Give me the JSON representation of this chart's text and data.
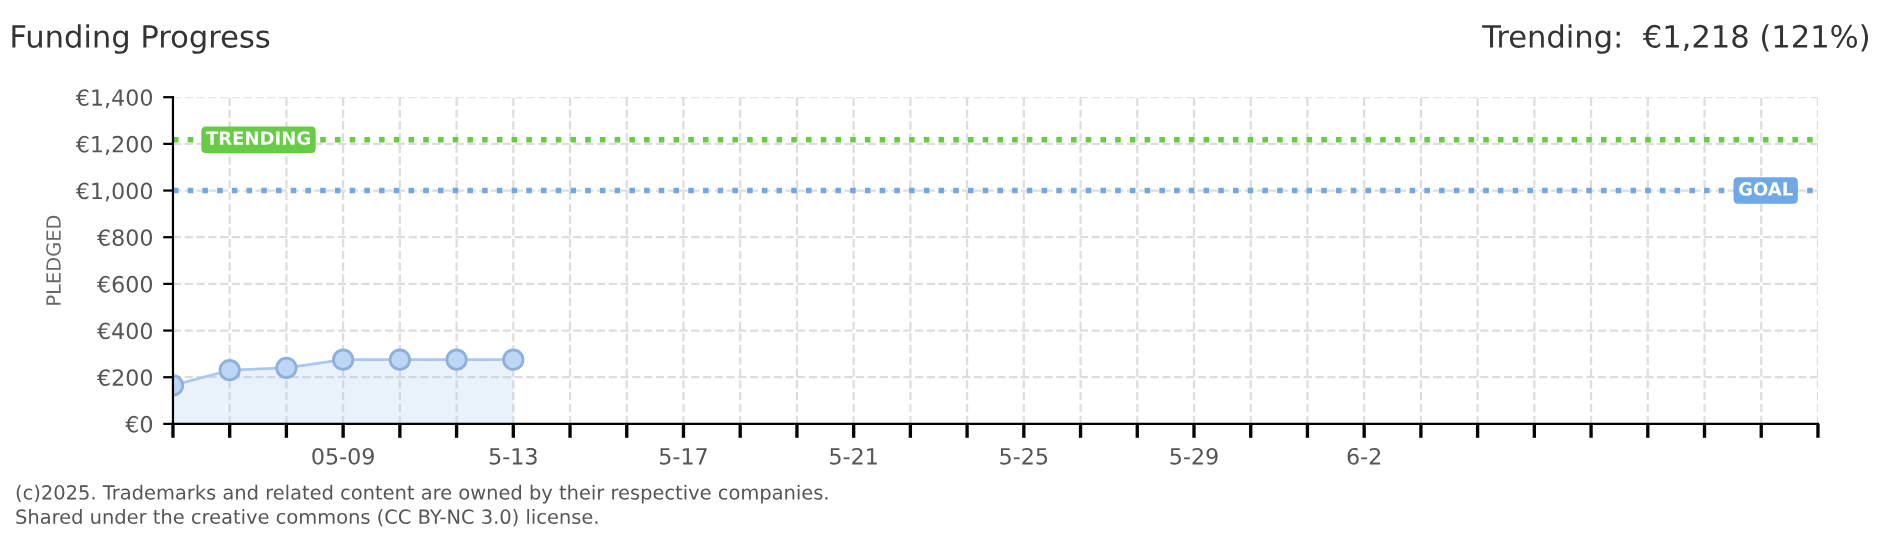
{
  "chart_data": {
    "type": "area",
    "title": "Funding Progress",
    "subtitle": "Trending:  €1,218 (121%)",
    "ylabel": "PLEDGED",
    "categories": [
      null,
      null,
      null,
      "05-09",
      null,
      null,
      "5-13",
      null,
      null,
      "5-17",
      null,
      null,
      "5-21",
      null,
      null,
      "5-25",
      null,
      null,
      "5-29",
      null,
      null,
      "6-2",
      null,
      null,
      null,
      null,
      null,
      null,
      null,
      null
    ],
    "series": [
      {
        "color": "#a9c8ee",
        "values": [
          165,
          230,
          240,
          275,
          275,
          275,
          275,
          null,
          null,
          null,
          null,
          null,
          null,
          null,
          null,
          null,
          null,
          null,
          null,
          null,
          null,
          null,
          null,
          null,
          null,
          null,
          null,
          null,
          null,
          null
        ]
      }
    ],
    "ylim": [
      0,
      1400
    ],
    "yticks": [
      {
        "value": 0,
        "label": "€0"
      },
      {
        "value": 200,
        "label": "€200"
      },
      {
        "value": 400,
        "label": "€400"
      },
      {
        "value": 600,
        "label": "€600"
      },
      {
        "value": 800,
        "label": "€800"
      },
      {
        "value": 1000,
        "label": "€1,000"
      },
      {
        "value": 1200,
        "label": "€1,200"
      },
      {
        "value": 1400,
        "label": "€1,400"
      }
    ],
    "ref_lines": [
      {
        "axis": "y",
        "value": 1218,
        "label": "TRENDING",
        "color": "#66cc44",
        "line_style": "dotted"
      },
      {
        "axis": "y",
        "value": 1000,
        "label": "GOAL",
        "color": "#6fa8e6",
        "line_style": "dotted"
      }
    ],
    "grid": true,
    "marker": "circle",
    "annotations": [
      "(c)2025. Trademarks and related content are owned by their respective companies.",
      "Shared under the creative commons (CC BY-NC 3.0) license."
    ]
  }
}
